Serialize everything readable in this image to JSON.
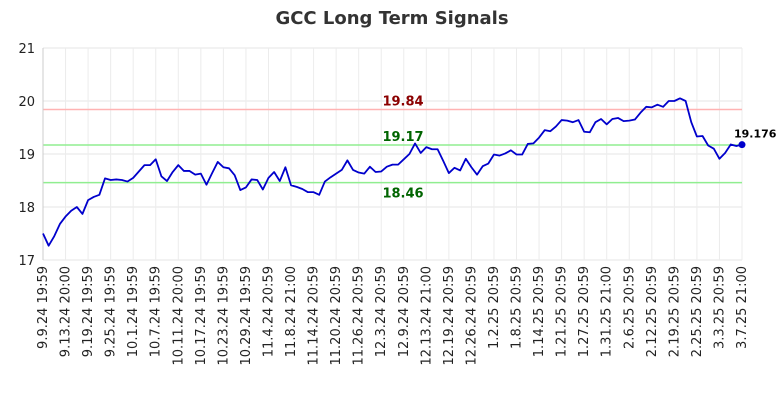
{
  "chart_data": {
    "type": "line",
    "title": "GCC Long Term Signals",
    "xlabel": "",
    "ylabel": "",
    "ylim": [
      17,
      21
    ],
    "y_ticks": [
      "17",
      "18",
      "19",
      "20",
      "21"
    ],
    "grid": true,
    "x_tick_labels": [
      "9.9.24 19:59",
      "9.13.24 20:00",
      "9.19.24 19:59",
      "9.25.24 19:59",
      "10.1.24 19:59",
      "10.7.24 19:59",
      "10.11.24 20:00",
      "10.17.24 19:59",
      "10.23.24 19:59",
      "10.29.24 19:59",
      "11.4.24 20:59",
      "11.8.24 21:00",
      "11.14.24 20:59",
      "11.20.24 20:59",
      "11.26.24 20:59",
      "12.3.24 20:59",
      "12.9.24 20:59",
      "12.13.24 21:00",
      "12.19.24 20:59",
      "12.26.24 20:59",
      "1.2.25 20:59",
      "1.8.25 20:59",
      "1.14.25 20:59",
      "1.21.25 20:59",
      "1.27.25 20:59",
      "1.31.25 21:00",
      "2.6.25 20:59",
      "2.12.25 20:59",
      "2.19.25 20:59",
      "2.25.25 20:59",
      "3.3.25 20:59",
      "3.7.25 21:00"
    ],
    "reference_lines": [
      {
        "value": 19.84,
        "label": "19.84",
        "line_color": "#ffb3b3",
        "label_color": "#8b0000",
        "label_position": "above"
      },
      {
        "value": 19.17,
        "label": "19.17",
        "line_color": "#90ee90",
        "label_color": "#006400",
        "label_position": "above"
      },
      {
        "value": 18.46,
        "label": "18.46",
        "line_color": "#90ee90",
        "label_color": "#006400",
        "label_position": "below"
      }
    ],
    "last_value_label": "19.176",
    "series": [
      {
        "color": "#0000cc",
        "values": [
          17.5,
          17.27,
          17.45,
          17.68,
          17.82,
          17.93,
          18.0,
          17.87,
          18.13,
          18.19,
          18.23,
          18.54,
          18.51,
          18.52,
          18.51,
          18.48,
          18.55,
          18.67,
          18.79,
          18.79,
          18.9,
          18.58,
          18.49,
          18.66,
          18.79,
          18.68,
          18.68,
          18.61,
          18.63,
          18.42,
          18.64,
          18.85,
          18.75,
          18.73,
          18.6,
          18.32,
          18.37,
          18.52,
          18.51,
          18.33,
          18.55,
          18.66,
          18.49,
          18.75,
          18.41,
          18.38,
          18.34,
          18.28,
          18.28,
          18.23,
          18.48,
          18.56,
          18.63,
          18.7,
          18.88,
          18.7,
          18.65,
          18.63,
          18.76,
          18.66,
          18.67,
          18.76,
          18.8,
          18.8,
          18.9,
          19.0,
          19.2,
          19.02,
          19.13,
          19.09,
          19.09,
          18.87,
          18.64,
          18.74,
          18.69,
          18.91,
          18.75,
          18.61,
          18.77,
          18.82,
          18.99,
          18.97,
          19.01,
          19.07,
          18.99,
          18.99,
          19.19,
          19.2,
          19.31,
          19.45,
          19.43,
          19.52,
          19.64,
          19.63,
          19.6,
          19.64,
          19.42,
          19.41,
          19.6,
          19.66,
          19.56,
          19.66,
          19.68,
          19.62,
          19.63,
          19.65,
          19.78,
          19.89,
          19.88,
          19.93,
          19.89,
          20.0,
          20.0,
          20.05,
          20.0,
          19.6,
          19.33,
          19.34,
          19.16,
          19.1,
          18.91,
          19.02,
          19.18,
          19.15,
          19.176
        ]
      }
    ]
  }
}
